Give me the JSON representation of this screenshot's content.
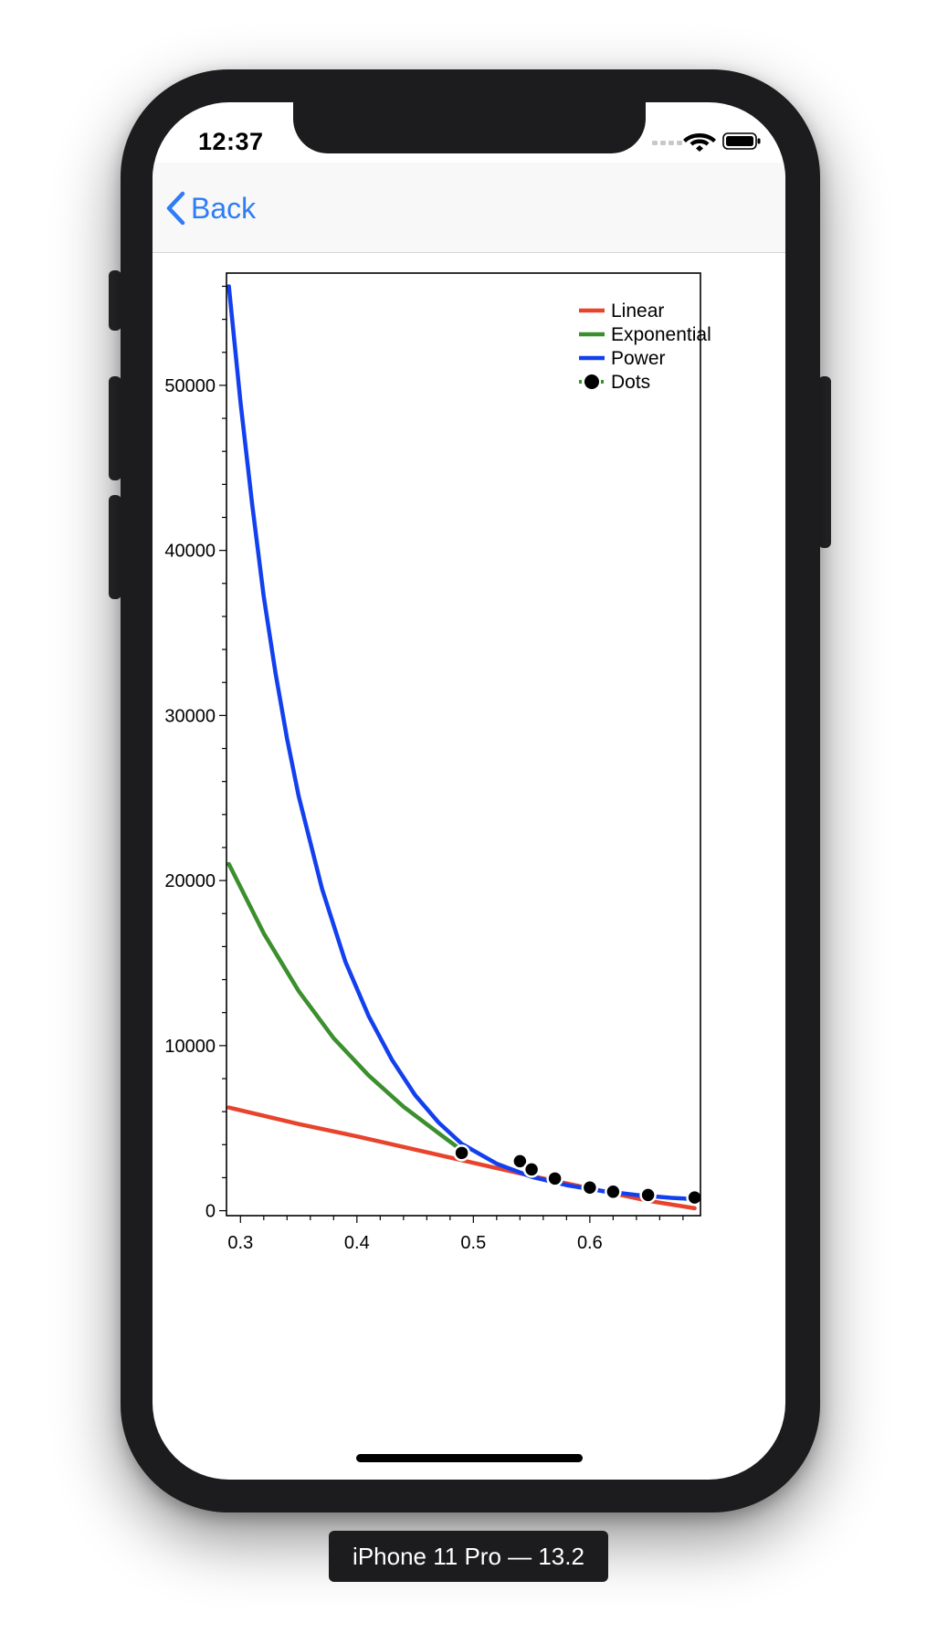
{
  "status_bar": {
    "time": "12:37",
    "icons": [
      "cellular-signal-icon",
      "wifi-icon",
      "battery-icon"
    ]
  },
  "nav": {
    "back_label": "Back",
    "accent_color": "#2f7cf6"
  },
  "device_label": "iPhone 11 Pro — 13.2",
  "chart_data": {
    "type": "line",
    "title": "",
    "xlabel": "",
    "ylabel": "",
    "xlim": [
      0.288,
      0.695
    ],
    "ylim": [
      -300,
      56800
    ],
    "x_ticks": [
      0.3,
      0.4,
      0.5,
      0.6
    ],
    "x_tick_labels": [
      "0.3",
      "0.4",
      "0.5",
      "0.6"
    ],
    "y_ticks": [
      0,
      10000,
      20000,
      30000,
      40000,
      50000
    ],
    "y_tick_labels": [
      "0",
      "10000",
      "20000",
      "30000",
      "40000",
      "50000"
    ],
    "grid": false,
    "legend_position": "top-right",
    "series": [
      {
        "name": "Linear",
        "kind": "line",
        "color": "#e8432c",
        "x": [
          0.29,
          0.35,
          0.4,
          0.45,
          0.5,
          0.55,
          0.6,
          0.65,
          0.69
        ],
        "y": [
          6250,
          5250,
          4500,
          3700,
          2900,
          2100,
          1350,
          600,
          150
        ]
      },
      {
        "name": "Exponential",
        "kind": "line",
        "color": "#3b8f2d",
        "x": [
          0.29,
          0.32,
          0.35,
          0.38,
          0.41,
          0.44,
          0.47,
          0.49
        ],
        "y": [
          21000,
          16800,
          13300,
          10450,
          8200,
          6300,
          4700,
          3650
        ]
      },
      {
        "name": "Power",
        "kind": "line",
        "color": "#1340ee",
        "x": [
          0.29,
          0.3,
          0.31,
          0.32,
          0.33,
          0.34,
          0.35,
          0.37,
          0.39,
          0.41,
          0.43,
          0.45,
          0.47,
          0.49,
          0.52,
          0.55,
          0.58,
          0.61,
          0.64,
          0.67,
          0.69
        ],
        "y": [
          56000,
          49000,
          42800,
          37200,
          32600,
          28600,
          25100,
          19500,
          15100,
          11800,
          9150,
          7000,
          5350,
          4050,
          2850,
          2050,
          1550,
          1200,
          950,
          780,
          700
        ]
      },
      {
        "name": "Dots",
        "kind": "scatter",
        "color": "#000000",
        "legend_line_color": "#3b8f2d",
        "x": [
          0.49,
          0.54,
          0.55,
          0.57,
          0.6,
          0.62,
          0.65,
          0.69
        ],
        "y": [
          3500,
          3000,
          2500,
          1950,
          1400,
          1150,
          950,
          800
        ]
      }
    ]
  }
}
